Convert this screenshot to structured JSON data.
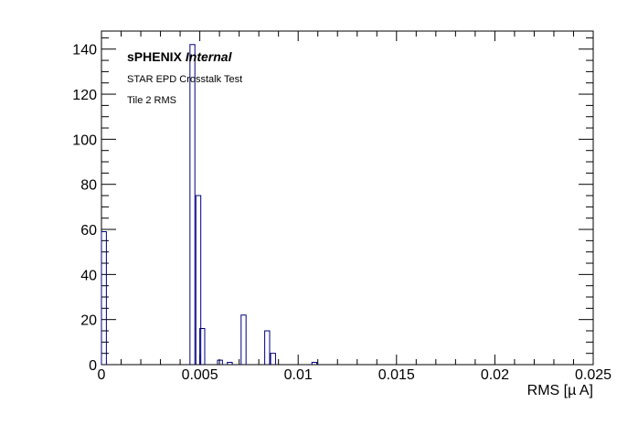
{
  "chart_data": {
    "type": "bar",
    "histogram": true,
    "title": "",
    "xlabel": "RMS [µ A]",
    "ylabel": "",
    "xlim": [
      0,
      0.025
    ],
    "ylim": [
      0,
      148
    ],
    "bin_width": 0.00025,
    "x_ticks": [
      0,
      0.005,
      0.01,
      0.015,
      0.02,
      0.025
    ],
    "x_tick_labels": [
      "0",
      "0.005",
      "0.01",
      "0.015",
      "0.02",
      "0.025"
    ],
    "y_ticks": [
      0,
      20,
      40,
      60,
      80,
      100,
      120,
      140
    ],
    "y_tick_labels": [
      "0",
      "20",
      "40",
      "60",
      "80",
      "100",
      "120",
      "140"
    ],
    "bins": [
      {
        "x": 0.0,
        "count": 59
      },
      {
        "x": 0.0045,
        "count": 142
      },
      {
        "x": 0.0048,
        "count": 75
      },
      {
        "x": 0.005,
        "count": 16
      },
      {
        "x": 0.0059,
        "count": 2
      },
      {
        "x": 0.0064,
        "count": 1
      },
      {
        "x": 0.0071,
        "count": 22
      },
      {
        "x": 0.0083,
        "count": 15
      },
      {
        "x": 0.0086,
        "count": 5
      },
      {
        "x": 0.0107,
        "count": 1
      }
    ],
    "grid": false,
    "colors": {
      "line": "#000080"
    },
    "annotations": {
      "experiment": "sPHENIX",
      "status": "Internal",
      "line1": "STAR EPD Crosstalk Test",
      "line2": "Tile 2 RMS"
    }
  }
}
